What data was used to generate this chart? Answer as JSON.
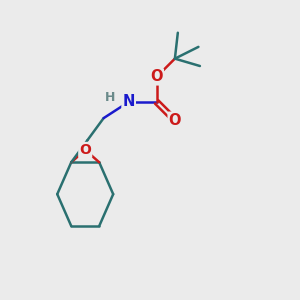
{
  "bg_color": "#ebebeb",
  "bond_color": "#2a7070",
  "N_color": "#1a1acc",
  "O_color": "#cc1a1a",
  "H_color": "#6a8a8a",
  "line_width": 1.8,
  "fig_size": [
    3.0,
    3.0
  ],
  "dpi": 100,
  "xlim": [
    0,
    10
  ],
  "ylim": [
    0,
    10
  ]
}
